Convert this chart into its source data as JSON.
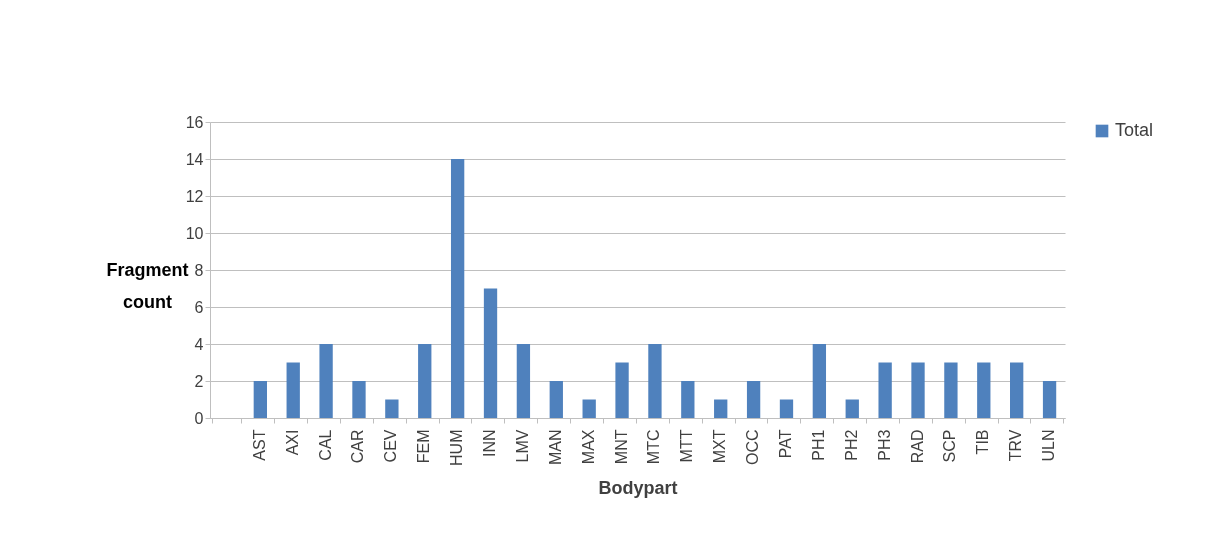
{
  "chart_data": {
    "type": "bar",
    "xlabel": "Bodypart",
    "ylabel": "Fragment count",
    "categories": [
      null,
      "AST",
      "AXI",
      "CAL",
      "CAR",
      "CEV",
      "FEM",
      "HUM",
      "INN",
      "LMV",
      "MAN",
      "MAX",
      "MNT",
      "MTC",
      "MTT",
      "MXT",
      "OCC",
      "PAT",
      "PH1",
      "PH2",
      "PH3",
      "RAD",
      "SCP",
      "TIB",
      "TRV",
      "ULN"
    ],
    "series": [
      {
        "name": "Total",
        "color": "#4f81bd",
        "values": [
          null,
          2,
          3,
          4,
          2,
          1,
          4,
          14,
          7,
          4,
          2,
          1,
          3,
          4,
          2,
          1,
          2,
          1,
          4,
          1,
          3,
          3,
          3,
          3,
          3,
          2
        ]
      }
    ],
    "ylim": [
      0,
      16
    ],
    "yticks": [
      0,
      2,
      4,
      6,
      8,
      10,
      12,
      14,
      16
    ],
    "grid": "y",
    "legend": "right"
  }
}
